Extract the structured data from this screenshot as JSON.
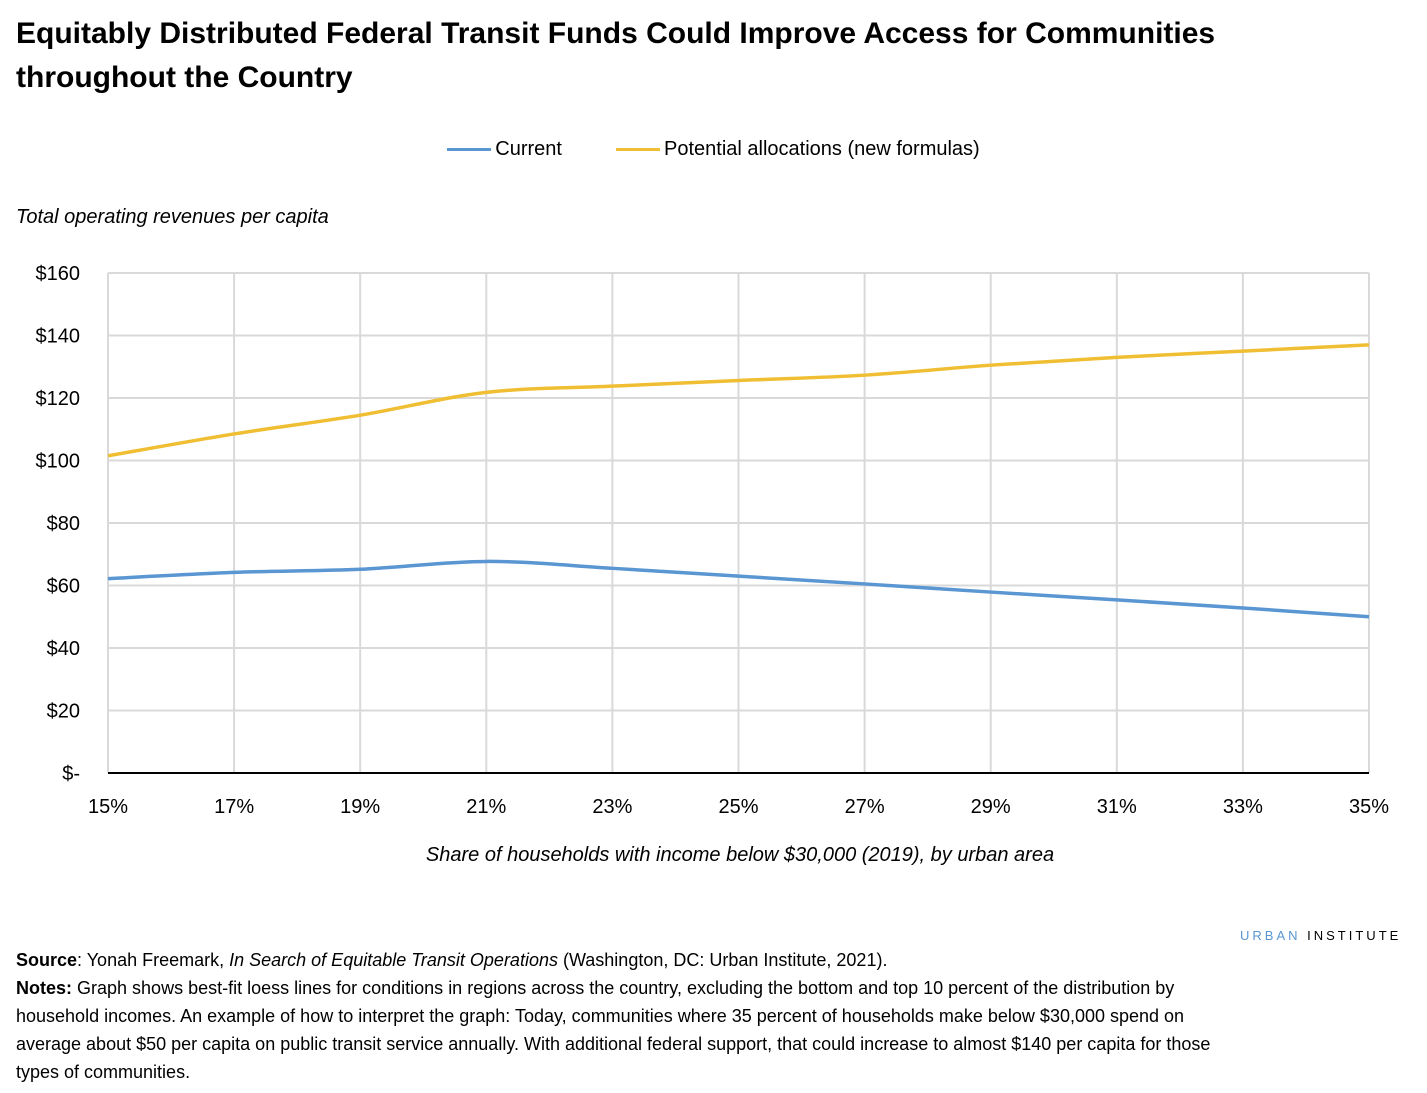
{
  "title": "Equitably Distributed Federal Transit Funds Could Improve Access for Communities throughout the Country",
  "logo": {
    "part1": "URBAN",
    "part2": "INSTITUTE",
    "color1": "#5A96D2"
  },
  "source": {
    "label": "Source",
    "text_pre": ": Yonah Freemark, ",
    "italic": "In Search of Equitable Transit Operations",
    "text_post": " (Washington, DC: Urban Institute, 2021)."
  },
  "notes": {
    "label": "Notes:",
    "text": " Graph shows best-fit loess lines for conditions in regions across the country, excluding the bottom and top 10 percent of the distribution by household incomes. An example of how to interpret the graph: Today, communities where 35 percent of households make below $30,000 spend on average about $50 per capita on public transit service annually. With additional federal support, that could increase to almost $140 per capita for those types of communities."
  },
  "chart_data": {
    "type": "line",
    "ylabel": "Total operating revenues per capita",
    "xlabel": "Share of households with income below $30,000 (2019), by urban area",
    "x": [
      15,
      17,
      19,
      21,
      23,
      25,
      27,
      29,
      31,
      33,
      35
    ],
    "xticks": [
      "15%",
      "17%",
      "19%",
      "21%",
      "23%",
      "25%",
      "27%",
      "29%",
      "31%",
      "33%",
      "35%"
    ],
    "yticks": [
      "$-",
      "$20",
      "$40",
      "$60",
      "$80",
      "$100",
      "$120",
      "$140",
      "$160"
    ],
    "xlim": [
      15,
      35
    ],
    "ylim": [
      0,
      160
    ],
    "grid": true,
    "legend": "top",
    "series": [
      {
        "name": "Current",
        "color": "#5A96D2",
        "values": [
          62.2,
          64.2,
          65.2,
          67.7,
          65.5,
          63.0,
          60.5,
          57.9,
          55.4,
          52.8,
          50.0
        ]
      },
      {
        "name": "Potential allocations (new formulas)",
        "color": "#F0BE32",
        "values": [
          101.5,
          108.5,
          114.5,
          121.8,
          123.8,
          125.6,
          127.3,
          130.5,
          133.0,
          135.0,
          137.0
        ]
      }
    ]
  }
}
